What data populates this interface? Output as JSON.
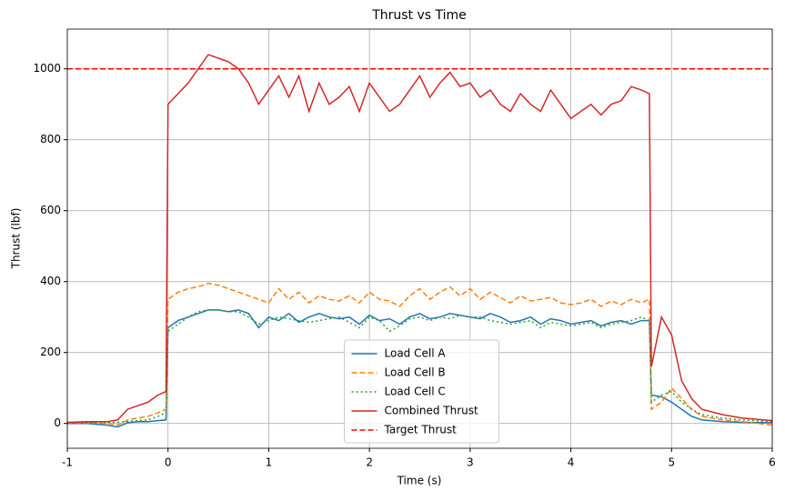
{
  "chart_data": {
    "type": "line",
    "title": "Thrust vs Time",
    "x_label": "Time (s)",
    "y_label": "Thrust (lbf)",
    "x": [
      -1,
      -0.8,
      -0.6,
      -0.5,
      -0.4,
      -0.3,
      -0.2,
      -0.1,
      -0.02,
      0,
      0.1,
      0.2,
      0.3,
      0.4,
      0.5,
      0.6,
      0.7,
      0.8,
      0.9,
      1.0,
      1.1,
      1.2,
      1.3,
      1.4,
      1.5,
      1.6,
      1.7,
      1.8,
      1.9,
      2.0,
      2.1,
      2.2,
      2.3,
      2.4,
      2.5,
      2.6,
      2.7,
      2.8,
      2.9,
      3.0,
      3.1,
      3.2,
      3.3,
      3.4,
      3.5,
      3.6,
      3.7,
      3.8,
      3.9,
      4.0,
      4.1,
      4.2,
      4.3,
      4.4,
      4.5,
      4.6,
      4.7,
      4.78,
      4.8,
      4.9,
      5.0,
      5.1,
      5.2,
      5.3,
      5.5,
      5.7,
      6.0
    ],
    "series": [
      {
        "name": "Load Cell A",
        "color": "#1f77b4",
        "linestyle": "solid",
        "values": [
          0,
          0,
          -5,
          -10,
          2,
          5,
          5,
          8,
          10,
          270,
          290,
          300,
          310,
          320,
          320,
          315,
          320,
          310,
          270,
          300,
          290,
          310,
          285,
          300,
          310,
          300,
          295,
          300,
          280,
          305,
          290,
          295,
          280,
          300,
          310,
          295,
          300,
          310,
          305,
          300,
          295,
          310,
          300,
          285,
          290,
          300,
          280,
          295,
          290,
          280,
          285,
          290,
          275,
          285,
          290,
          280,
          290,
          290,
          80,
          75,
          60,
          40,
          20,
          10,
          5,
          3,
          2
        ]
      },
      {
        "name": "Load Cell B",
        "color": "#ff7f0e",
        "linestyle": "dashed",
        "values": [
          2,
          2,
          0,
          -5,
          10,
          15,
          20,
          30,
          40,
          350,
          370,
          380,
          385,
          395,
          390,
          380,
          370,
          360,
          350,
          340,
          380,
          350,
          370,
          340,
          360,
          350,
          345,
          360,
          340,
          370,
          350,
          345,
          330,
          360,
          380,
          350,
          370,
          385,
          360,
          380,
          350,
          370,
          355,
          340,
          360,
          345,
          350,
          355,
          340,
          335,
          340,
          350,
          330,
          345,
          335,
          350,
          340,
          350,
          40,
          60,
          100,
          70,
          40,
          20,
          10,
          5,
          -5
        ]
      },
      {
        "name": "Load Cell C",
        "color": "#2ca02c",
        "linestyle": "dotted",
        "values": [
          3,
          3,
          3,
          3,
          5,
          8,
          10,
          20,
          30,
          260,
          280,
          300,
          315,
          320,
          320,
          315,
          315,
          300,
          280,
          290,
          300,
          295,
          290,
          285,
          290,
          295,
          300,
          285,
          270,
          300,
          290,
          260,
          275,
          295,
          300,
          290,
          300,
          295,
          305,
          300,
          300,
          290,
          285,
          280,
          285,
          290,
          270,
          285,
          280,
          275,
          280,
          285,
          270,
          280,
          285,
          290,
          300,
          290,
          60,
          80,
          90,
          60,
          40,
          25,
          15,
          10,
          5
        ]
      },
      {
        "name": "Combined Thrust",
        "color": "#d62728",
        "linestyle": "solid",
        "values": [
          3,
          5,
          5,
          10,
          40,
          50,
          60,
          80,
          90,
          900,
          930,
          960,
          1000,
          1040,
          1030,
          1020,
          1000,
          960,
          900,
          940,
          980,
          920,
          980,
          880,
          960,
          900,
          920,
          950,
          880,
          960,
          920,
          880,
          900,
          940,
          980,
          920,
          960,
          990,
          950,
          960,
          920,
          940,
          900,
          880,
          930,
          900,
          880,
          940,
          900,
          860,
          880,
          900,
          870,
          900,
          910,
          950,
          940,
          930,
          160,
          300,
          250,
          120,
          70,
          40,
          25,
          15,
          8
        ]
      },
      {
        "name": "Target Thrust",
        "color": "#ff0000",
        "linestyle": "dashed",
        "x": [
          -1,
          6
        ],
        "values": [
          1000,
          1000
        ]
      }
    ],
    "xlim": [
      -1,
      6
    ],
    "xticks": [
      -1,
      0,
      1,
      2,
      3,
      4,
      5,
      6
    ],
    "ylim": [
      -70,
      1112
    ],
    "yticks": [
      0,
      200,
      400,
      600,
      800,
      1000
    ],
    "grid": true,
    "legend": "lower center"
  }
}
